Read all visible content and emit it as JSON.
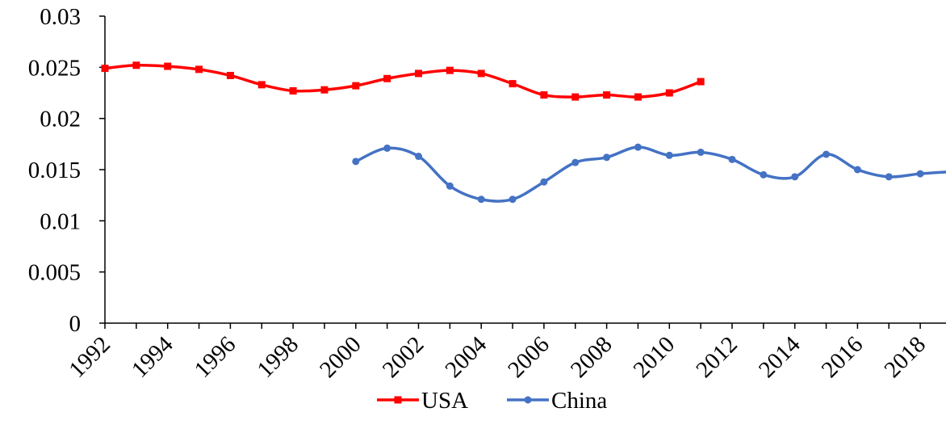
{
  "chart_data": {
    "type": "line",
    "title": "",
    "xlabel": "",
    "ylabel": "",
    "xlim": [
      1992,
      2019
    ],
    "ylim": [
      0,
      0.03
    ],
    "x_ticks": [
      "1992",
      "1994",
      "1996",
      "1998",
      "2000",
      "2002",
      "2004",
      "2006",
      "2008",
      "2010",
      "2012",
      "2014",
      "2016",
      "2018"
    ],
    "y_ticks": [
      "0",
      "0.005",
      "0.01",
      "0.015",
      "0.02",
      "0.025",
      "0.03"
    ],
    "grid": false,
    "legend_position": "bottom",
    "series": [
      {
        "name": "USA",
        "color": "#ff0000",
        "marker": "square",
        "x": [
          1992,
          1993,
          1994,
          1995,
          1996,
          1997,
          1998,
          1999,
          2000,
          2001,
          2002,
          2003,
          2004,
          2005,
          2006,
          2007,
          2008,
          2009,
          2010,
          2011
        ],
        "values": [
          0.0249,
          0.0252,
          0.0251,
          0.0248,
          0.0242,
          0.0233,
          0.0227,
          0.0228,
          0.0232,
          0.0239,
          0.0244,
          0.0247,
          0.0244,
          0.0234,
          0.0223,
          0.0221,
          0.0223,
          0.0221,
          0.0225,
          0.0236
        ]
      },
      {
        "name": "China",
        "color": "#4472c4",
        "marker": "circle",
        "x": [
          2000,
          2001,
          2002,
          2003,
          2004,
          2005,
          2006,
          2007,
          2008,
          2009,
          2010,
          2011,
          2012,
          2013,
          2014,
          2015,
          2016,
          2017,
          2018,
          2019
        ],
        "values": [
          0.0158,
          0.0171,
          0.0163,
          0.0134,
          0.0121,
          0.0121,
          0.0138,
          0.0157,
          0.0162,
          0.0172,
          0.0164,
          0.0167,
          0.016,
          0.0145,
          0.0143,
          0.0165,
          0.015,
          0.0143,
          0.0146,
          0.0148
        ]
      }
    ]
  }
}
